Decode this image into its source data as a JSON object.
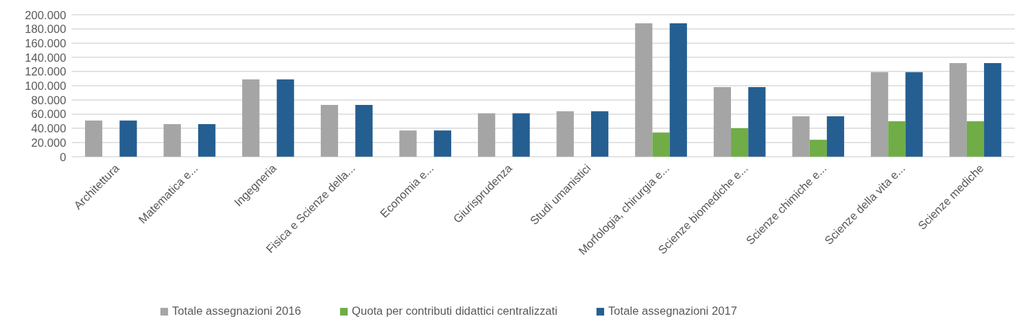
{
  "chart_data": {
    "type": "bar",
    "categories": [
      "Architettura",
      "Matematica e...",
      "Ingegneria",
      "Fisica e Scienze della...",
      "Economia e...",
      "Giurisprudenza",
      "Studi umanistici",
      "Morfologia, chirurgia e...",
      "Scienze biomediche e...",
      "Scienze chimiche e...",
      "Scienze della vita e...",
      "Scienze mediche"
    ],
    "series": [
      {
        "name": "Totale assegnazioni 2016",
        "color": "#a5a5a5",
        "values": [
          51000,
          46000,
          109000,
          73000,
          37000,
          61000,
          64000,
          188000,
          98000,
          57000,
          119000,
          132000
        ]
      },
      {
        "name": "Quota per contributi didattici centralizzati",
        "color": "#70ad47",
        "values": [
          null,
          null,
          null,
          null,
          null,
          null,
          null,
          34000,
          40000,
          24000,
          50000,
          50000
        ]
      },
      {
        "name": "Totale assegnazioni 2017",
        "color": "#255e91",
        "values": [
          51000,
          46000,
          109000,
          73000,
          37000,
          61000,
          64000,
          188000,
          98000,
          57000,
          119000,
          132000
        ]
      }
    ],
    "ylim": [
      0,
      200000
    ],
    "yticks": [
      {
        "value": 0,
        "label": "0"
      },
      {
        "value": 20000,
        "label": "20.000"
      },
      {
        "value": 40000,
        "label": "40.000"
      },
      {
        "value": 60000,
        "label": "60.000"
      },
      {
        "value": 80000,
        "label": "80.000"
      },
      {
        "value": 100000,
        "label": "100.000"
      },
      {
        "value": 120000,
        "label": "120.000"
      },
      {
        "value": 140000,
        "label": "140.000"
      },
      {
        "value": 160000,
        "label": "160.000"
      },
      {
        "value": 180000,
        "label": "180.000"
      },
      {
        "value": 200000,
        "label": "200.000"
      }
    ],
    "grid": "y",
    "legend": "bottom"
  }
}
